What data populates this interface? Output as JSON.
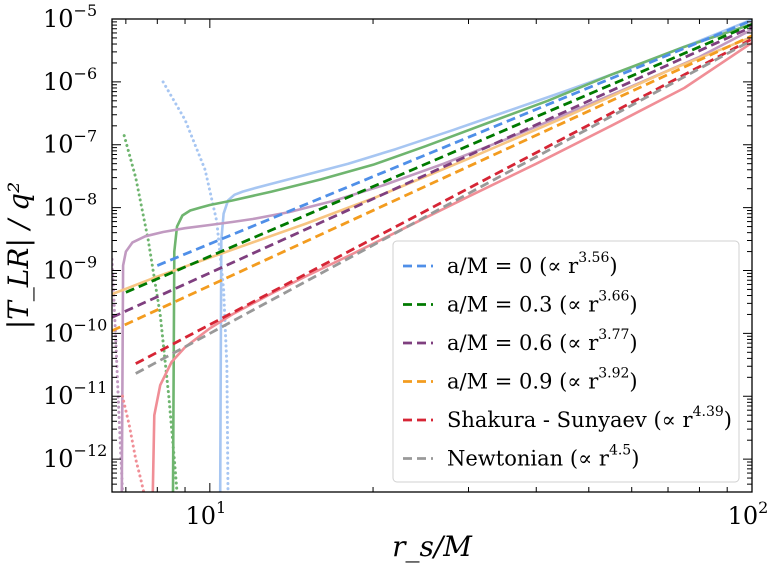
{
  "chart_data": {
    "type": "line",
    "title": "",
    "xlabel": "r_s/M",
    "ylabel": "|T_LR| / q²",
    "xscale": "log",
    "yscale": "log",
    "xlim": [
      6.6,
      100
    ],
    "ylim": [
      3e-13,
      1e-05
    ],
    "x_ticks": [
      {
        "value": 10,
        "base": "10",
        "exp": "1"
      },
      {
        "value": 100,
        "base": "10",
        "exp": "2"
      }
    ],
    "y_ticks": [
      {
        "value": 1e-12,
        "base": "10",
        "exp": "−12"
      },
      {
        "value": 1e-11,
        "base": "10",
        "exp": "−11"
      },
      {
        "value": 1e-10,
        "base": "10",
        "exp": "−10"
      },
      {
        "value": 1e-09,
        "base": "10",
        "exp": "−9"
      },
      {
        "value": 1e-08,
        "base": "10",
        "exp": "−8"
      },
      {
        "value": 1e-07,
        "base": "10",
        "exp": "−7"
      },
      {
        "value": 1e-06,
        "base": "10",
        "exp": "−6"
      },
      {
        "value": 1e-05,
        "base": "10",
        "exp": "−5"
      }
    ],
    "grid": false,
    "legend_position": "bottom-right",
    "series": [
      {
        "name": "a/M = 0 (∝ r^3.56)",
        "label_main": "a/M = 0 (∝ r",
        "label_exp": "3.56",
        "label_close": ")",
        "style": "dashed",
        "color": "#4f8fe8",
        "x": [
          8,
          100
        ],
        "y": [
          1.2e-09,
          9.5e-06
        ]
      },
      {
        "name": "a/M = 0.3 (∝ r^3.66)",
        "label_main": "a/M = 0.3 (∝ r",
        "label_exp": "3.66",
        "label_close": ")",
        "style": "dashed",
        "color": "#007a00",
        "x": [
          7,
          100
        ],
        "y": [
          4.5e-10,
          8.2e-06
        ]
      },
      {
        "name": "a/M = 0.6 (∝ r^3.77)",
        "label_main": "a/M = 0.6 (∝ r",
        "label_exp": "3.77",
        "label_close": ")",
        "style": "dashed",
        "color": "#7f3f7f",
        "x": [
          6.6,
          100
        ],
        "y": [
          1.8e-10,
          7.5e-06
        ]
      },
      {
        "name": "a/M = 0.9 (∝ r^3.92)",
        "label_main": "a/M = 0.9 (∝ r",
        "label_exp": "3.92",
        "label_close": ")",
        "style": "dashed",
        "color": "#f39c1f",
        "x": [
          6.6,
          100
        ],
        "y": [
          1.1e-10,
          5.4e-06
        ]
      },
      {
        "name": "Shakura - Sunyaev (∝ r^4.39)",
        "label_main": "Shakura - Sunyaev (∝ r",
        "label_exp": "4.39",
        "label_close": ")",
        "style": "dashed",
        "color": "#d62535",
        "x": [
          7.3,
          100
        ],
        "y": [
          3.3e-11,
          4.8e-06
        ]
      },
      {
        "name": "Newtonian (∝ r^4.5)",
        "label_main": "Newtonian (∝ r",
        "label_exp": "4.5",
        "label_close": ")",
        "style": "dashed",
        "color": "#999999",
        "x": [
          7.3,
          100
        ],
        "y": [
          2.3e-11,
          4.6e-06
        ]
      }
    ],
    "curves": [
      {
        "color": "#a7c6f2",
        "style": "solid",
        "x": [
          10.45,
          10.5,
          10.6,
          10.8,
          11.1,
          11.5,
          12,
          13,
          15,
          18,
          22,
          28,
          35,
          45,
          60,
          80,
          100
        ],
        "y": [
          3e-13,
          3e-09,
          8e-09,
          1.3e-08,
          1.6e-08,
          1.8e-08,
          2e-08,
          2.4e-08,
          3.3e-08,
          5e-08,
          8.5e-08,
          1.7e-07,
          3.3e-07,
          7e-07,
          1.7e-06,
          4.5e-06,
          9.8e-06
        ]
      },
      {
        "color": "#a7c6f2",
        "style": "dotted",
        "x": [
          8.2,
          9,
          9.8,
          10.3,
          10.6,
          10.75,
          10.8
        ],
        "y": [
          1e-06,
          2.5e-07,
          4e-08,
          6e-09,
          5e-10,
          3e-11,
          3e-13
        ]
      },
      {
        "color": "#6fb56f",
        "style": "solid",
        "x": [
          8.55,
          8.6,
          8.7,
          8.9,
          9.2,
          9.6,
          10,
          11,
          13,
          16,
          20,
          25,
          32,
          42,
          55,
          75,
          100
        ],
        "y": [
          3e-13,
          2e-09,
          5e-09,
          7.5e-09,
          9e-09,
          1e-08,
          1.1e-08,
          1.3e-08,
          1.8e-08,
          2.8e-08,
          4.8e-08,
          9.5e-08,
          2.1e-07,
          5e-07,
          1.3e-06,
          3.6e-06,
          8.3e-06
        ]
      },
      {
        "color": "#6fb56f",
        "style": "dotted",
        "x": [
          6.95,
          7.3,
          7.7,
          8.1,
          8.4,
          8.6,
          8.7
        ],
        "y": [
          1.4e-07,
          3e-08,
          3e-09,
          2e-10,
          1e-11,
          1e-12,
          3e-13
        ]
      },
      {
        "color": "#c19ac1",
        "style": "solid",
        "x": [
          6.88,
          6.92,
          7,
          7.2,
          7.6,
          8.2,
          9,
          10,
          11,
          12,
          14,
          17,
          21,
          27,
          35,
          45,
          60,
          80,
          100
        ],
        "y": [
          3e-13,
          1.2e-09,
          2e-09,
          2.8e-09,
          3.5e-09,
          4.1e-09,
          4.7e-09,
          5.3e-09,
          5.9e-09,
          6.6e-09,
          8.5e-09,
          1.3e-08,
          2.3e-08,
          5e-08,
          1.2e-07,
          3e-07,
          8.5e-07,
          2.5e-06,
          6.8e-06
        ]
      },
      {
        "color": "#c19ac1",
        "style": "dotted",
        "x": [
          6.6,
          6.7,
          6.8,
          6.9
        ],
        "y": [
          1.5e-09,
          1e-10,
          5e-12,
          3e-13
        ]
      },
      {
        "color": "#f7c582",
        "style": "solid",
        "x": [
          6.6,
          8,
          10,
          12,
          15,
          20,
          30,
          45,
          70,
          100
        ],
        "y": [
          4.2e-10,
          8e-10,
          1.6e-09,
          2.8e-09,
          5.5e-09,
          1.4e-08,
          6e-08,
          2.7e-07,
          1.5e-06,
          5.2e-06
        ]
      },
      {
        "color": "#f08e96",
        "style": "solid",
        "x": [
          7.85,
          7.9,
          8.1,
          8.5,
          9,
          10,
          11,
          13,
          15,
          18,
          22,
          30,
          40,
          55,
          75,
          100
        ],
        "y": [
          3e-13,
          5e-12,
          1.5e-11,
          3.5e-11,
          6e-11,
          1.2e-10,
          2e-10,
          4.3e-10,
          8e-10,
          1.7e-09,
          4e-09,
          1.5e-08,
          5e-08,
          2e-07,
          8e-07,
          4.2e-06
        ]
      },
      {
        "color": "#f08e96",
        "style": "dotted",
        "x": [
          6.9,
          7.1,
          7.3,
          7.45,
          7.55
        ],
        "y": [
          1e-11,
          3.5e-12,
          1e-12,
          5e-13,
          3e-13
        ]
      }
    ]
  }
}
